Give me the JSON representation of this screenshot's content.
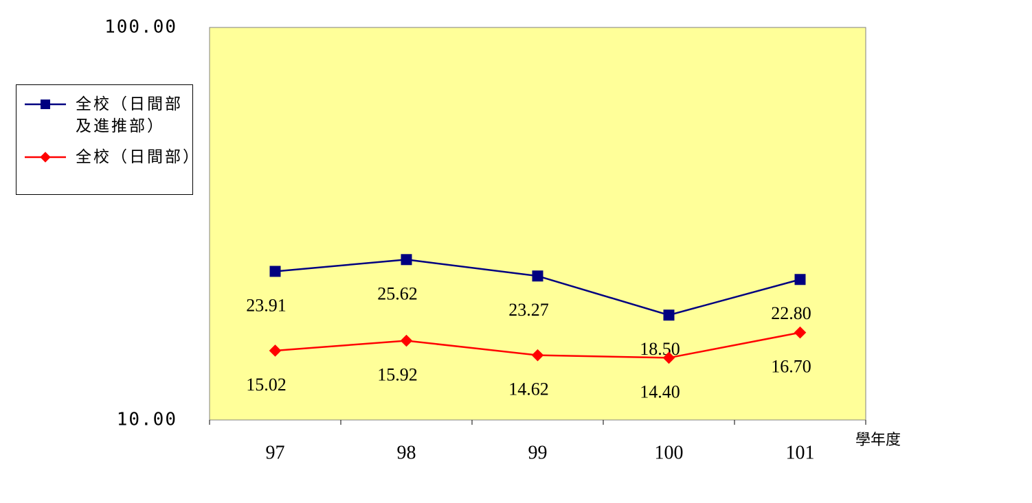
{
  "chart_data": {
    "type": "line",
    "categories": [
      "97",
      "98",
      "99",
      "100",
      "101"
    ],
    "x_label": "學年度",
    "series": [
      {
        "name": "全校（日間部及進推部）",
        "color": "#000080",
        "marker": "square",
        "values": [
          23.91,
          25.62,
          23.27,
          18.5,
          22.8
        ],
        "value_labels": [
          "23.91",
          "25.62",
          "23.27",
          "18.50",
          "22.80"
        ]
      },
      {
        "name": "全校（日間部）",
        "color": "#ff0000",
        "marker": "diamond",
        "values": [
          15.02,
          15.92,
          14.62,
          14.4,
          16.7
        ],
        "value_labels": [
          "15.02",
          "15.92",
          "14.62",
          "14.40",
          "16.70"
        ]
      }
    ],
    "ylim": [
      10,
      100
    ],
    "yticks": [
      {
        "value": 10,
        "label": "10.00"
      },
      {
        "value": 100,
        "label": "100.00"
      }
    ],
    "log_scale": true,
    "plot_background": "#ffff99",
    "legend": "left"
  }
}
